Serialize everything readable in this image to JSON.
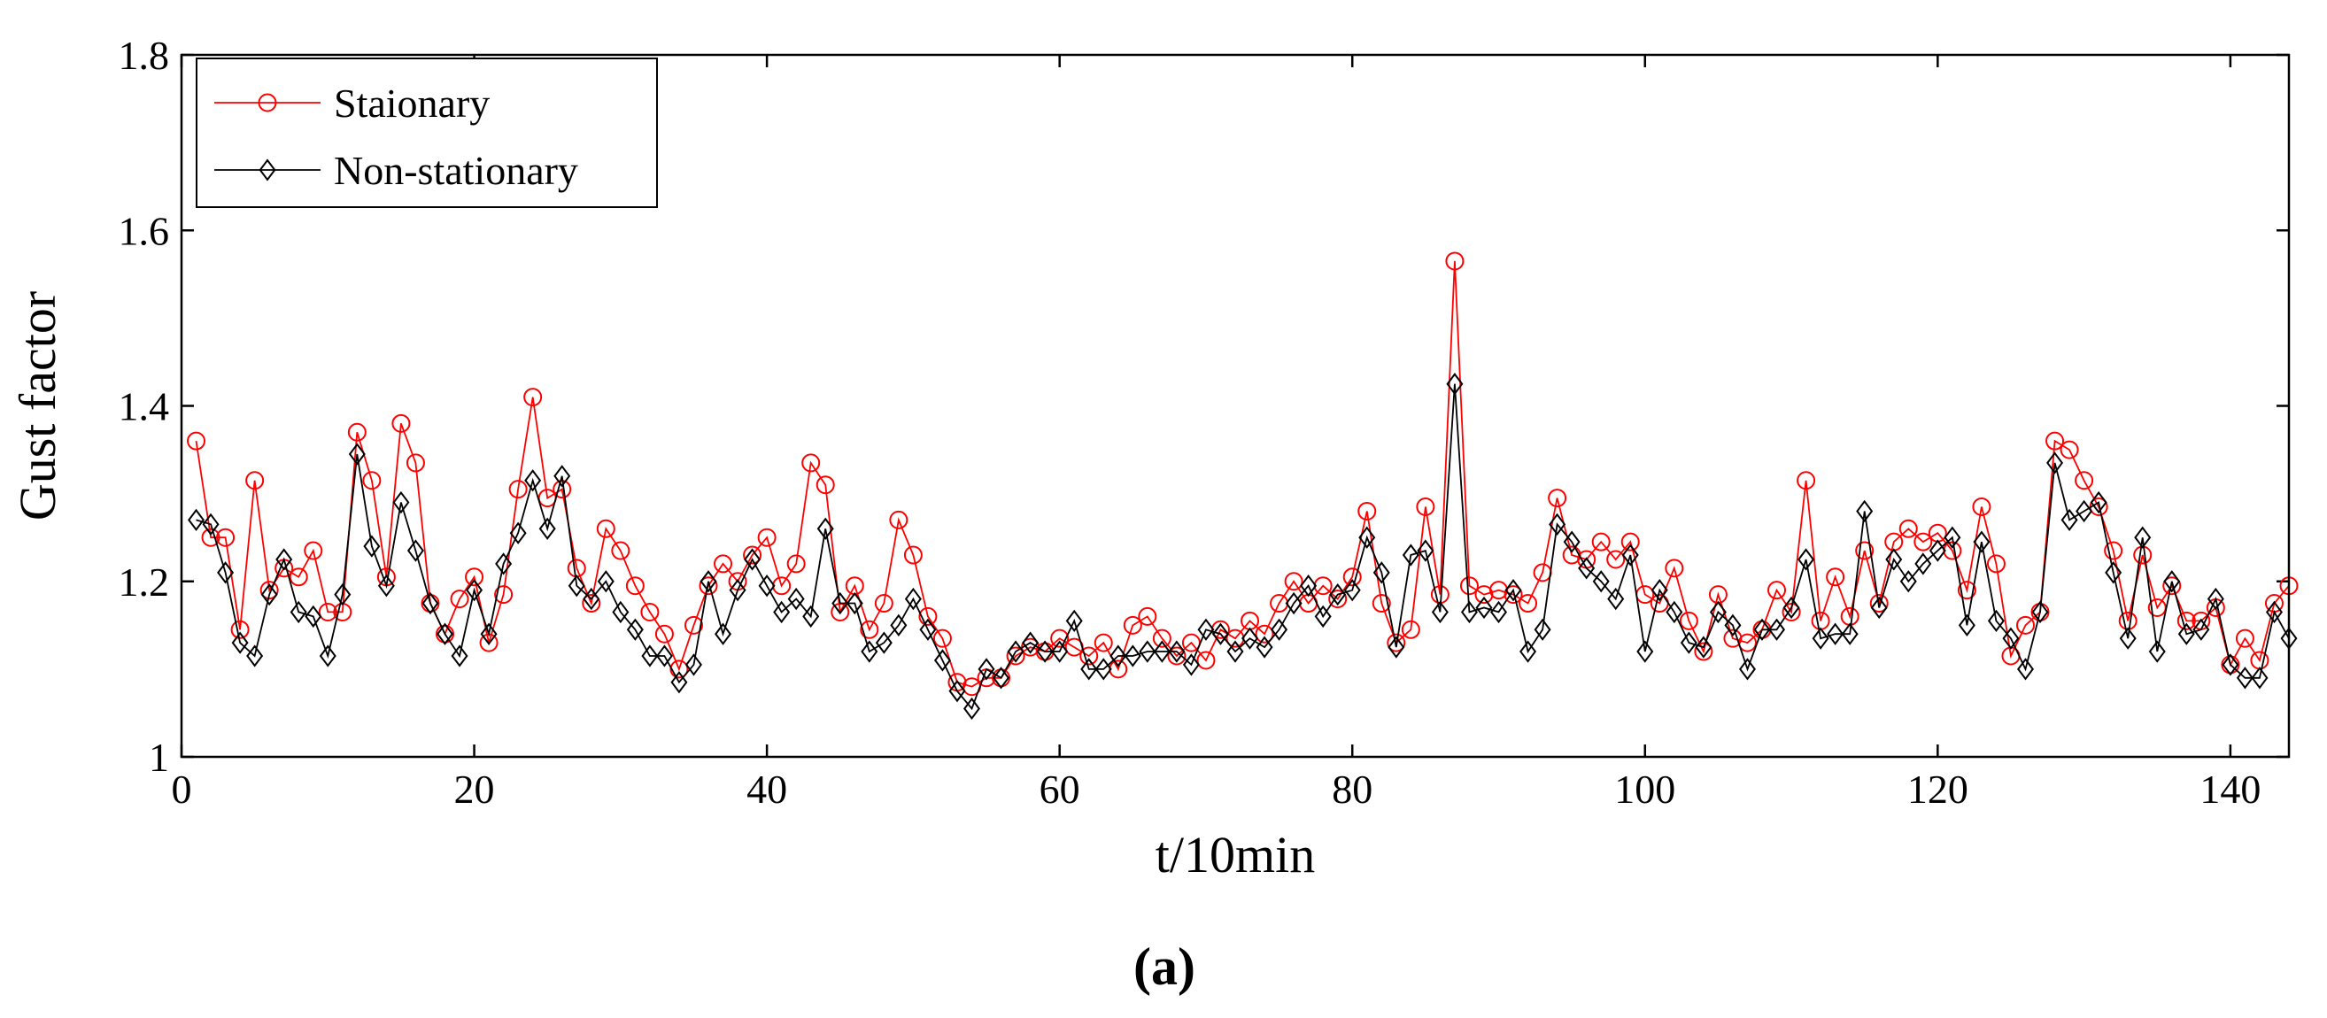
{
  "chart_data": {
    "type": "line",
    "title": "",
    "xlabel": "t/10min",
    "ylabel": "Gust factor",
    "panel_label": "(a)",
    "xlim": [
      0,
      144
    ],
    "ylim": [
      1.0,
      1.8
    ],
    "xticks": [
      0,
      20,
      40,
      60,
      80,
      100,
      120,
      140
    ],
    "yticks": [
      1.0,
      1.2,
      1.4,
      1.6,
      1.8
    ],
    "xtick_labels": [
      "0",
      "20",
      "40",
      "60",
      "80",
      "100",
      "120",
      "140"
    ],
    "ytick_labels": [
      "1",
      "1.2",
      "1.4",
      "1.6",
      "1.8"
    ],
    "grid": false,
    "legend_position": "top-left",
    "x": [
      1,
      2,
      3,
      4,
      5,
      6,
      7,
      8,
      9,
      10,
      11,
      12,
      13,
      14,
      15,
      16,
      17,
      18,
      19,
      20,
      21,
      22,
      23,
      24,
      25,
      26,
      27,
      28,
      29,
      30,
      31,
      32,
      33,
      34,
      35,
      36,
      37,
      38,
      39,
      40,
      41,
      42,
      43,
      44,
      45,
      46,
      47,
      48,
      49,
      50,
      51,
      52,
      53,
      54,
      55,
      56,
      57,
      58,
      59,
      60,
      61,
      62,
      63,
      64,
      65,
      66,
      67,
      68,
      69,
      70,
      71,
      72,
      73,
      74,
      75,
      76,
      77,
      78,
      79,
      80,
      81,
      82,
      83,
      84,
      85,
      86,
      87,
      88,
      89,
      90,
      91,
      92,
      93,
      94,
      95,
      96,
      97,
      98,
      99,
      100,
      101,
      102,
      103,
      104,
      105,
      106,
      107,
      108,
      109,
      110,
      111,
      112,
      113,
      114,
      115,
      116,
      117,
      118,
      119,
      120,
      121,
      122,
      123,
      124,
      125,
      126,
      127,
      128,
      129,
      130,
      131,
      132,
      133,
      134,
      135,
      136,
      137,
      138,
      139,
      140,
      141,
      142,
      143,
      144
    ],
    "series": [
      {
        "name": "Staionary",
        "color": "#ff0000",
        "marker": "circle",
        "values": [
          1.36,
          1.25,
          1.25,
          1.145,
          1.315,
          1.19,
          1.215,
          1.205,
          1.235,
          1.165,
          1.165,
          1.37,
          1.315,
          1.205,
          1.38,
          1.335,
          1.175,
          1.14,
          1.18,
          1.205,
          1.13,
          1.185,
          1.305,
          1.41,
          1.295,
          1.305,
          1.215,
          1.175,
          1.26,
          1.235,
          1.195,
          1.165,
          1.14,
          1.1,
          1.15,
          1.195,
          1.22,
          1.2,
          1.23,
          1.25,
          1.195,
          1.22,
          1.335,
          1.31,
          1.165,
          1.195,
          1.145,
          1.175,
          1.27,
          1.23,
          1.16,
          1.135,
          1.085,
          1.08,
          1.09,
          1.09,
          1.115,
          1.125,
          1.12,
          1.135,
          1.125,
          1.115,
          1.13,
          1.1,
          1.15,
          1.16,
          1.135,
          1.115,
          1.13,
          1.11,
          1.145,
          1.135,
          1.155,
          1.14,
          1.175,
          1.2,
          1.175,
          1.195,
          1.18,
          1.205,
          1.28,
          1.175,
          1.13,
          1.145,
          1.285,
          1.185,
          1.565,
          1.195,
          1.185,
          1.19,
          1.185,
          1.175,
          1.21,
          1.295,
          1.23,
          1.225,
          1.245,
          1.225,
          1.245,
          1.185,
          1.175,
          1.215,
          1.155,
          1.12,
          1.185,
          1.135,
          1.13,
          1.145,
          1.19,
          1.165,
          1.315,
          1.155,
          1.205,
          1.16,
          1.235,
          1.175,
          1.245,
          1.26,
          1.245,
          1.255,
          1.235,
          1.19,
          1.285,
          1.22,
          1.115,
          1.15,
          1.165,
          1.36,
          1.35,
          1.315,
          1.285,
          1.235,
          1.155,
          1.23,
          1.17,
          1.195,
          1.155,
          1.155,
          1.17,
          1.105,
          1.135,
          1.11,
          1.175,
          1.195
        ]
      },
      {
        "name": "Non-stationary",
        "color": "#000000",
        "marker": "diamond",
        "values": [
          1.27,
          1.265,
          1.21,
          1.13,
          1.115,
          1.185,
          1.225,
          1.165,
          1.16,
          1.115,
          1.185,
          1.345,
          1.24,
          1.195,
          1.29,
          1.235,
          1.175,
          1.14,
          1.115,
          1.19,
          1.14,
          1.22,
          1.255,
          1.315,
          1.26,
          1.32,
          1.195,
          1.18,
          1.2,
          1.165,
          1.145,
          1.115,
          1.115,
          1.085,
          1.105,
          1.2,
          1.14,
          1.19,
          1.225,
          1.195,
          1.165,
          1.18,
          1.16,
          1.26,
          1.175,
          1.175,
          1.12,
          1.13,
          1.15,
          1.18,
          1.145,
          1.11,
          1.075,
          1.055,
          1.1,
          1.09,
          1.12,
          1.13,
          1.12,
          1.12,
          1.155,
          1.1,
          1.1,
          1.115,
          1.115,
          1.12,
          1.12,
          1.12,
          1.105,
          1.145,
          1.14,
          1.12,
          1.135,
          1.125,
          1.145,
          1.175,
          1.195,
          1.16,
          1.185,
          1.19,
          1.25,
          1.21,
          1.125,
          1.23,
          1.235,
          1.165,
          1.425,
          1.165,
          1.17,
          1.165,
          1.19,
          1.12,
          1.145,
          1.265,
          1.245,
          1.215,
          1.2,
          1.18,
          1.23,
          1.12,
          1.19,
          1.165,
          1.13,
          1.125,
          1.165,
          1.15,
          1.1,
          1.145,
          1.145,
          1.17,
          1.225,
          1.135,
          1.14,
          1.14,
          1.28,
          1.17,
          1.225,
          1.2,
          1.22,
          1.235,
          1.25,
          1.15,
          1.245,
          1.155,
          1.135,
          1.1,
          1.165,
          1.335,
          1.27,
          1.28,
          1.29,
          1.21,
          1.135,
          1.25,
          1.12,
          1.2,
          1.14,
          1.145,
          1.18,
          1.105,
          1.09,
          1.09,
          1.165,
          1.135
        ]
      }
    ]
  }
}
